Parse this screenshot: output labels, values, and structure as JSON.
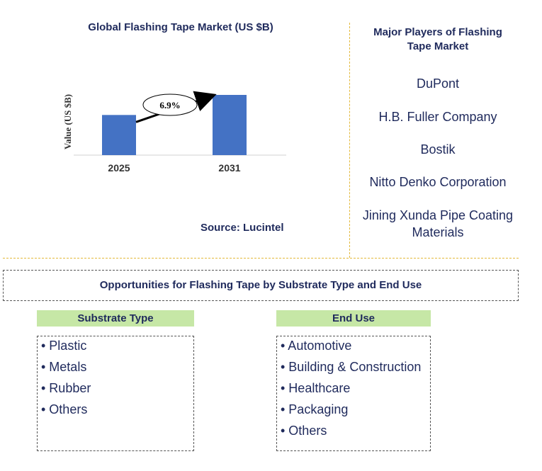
{
  "chart_data": {
    "type": "bar",
    "title": "Global Flashing Tape Market (US $B)",
    "ylabel": "Value (US $B)",
    "xlabel": "",
    "categories": [
      "2025",
      "2031"
    ],
    "values": [
      1.0,
      1.5
    ],
    "ylim": [
      0,
      1.5
    ],
    "cagr_label": "6.9%",
    "bar_color": "#4472c4",
    "source": "Source: Lucintel"
  },
  "players": {
    "title_lines": [
      "Major Players of Flashing",
      "Tape Market"
    ],
    "items": [
      [
        "DuPont"
      ],
      [
        "H.B. Fuller Company"
      ],
      [
        "Bostik"
      ],
      [
        "Nitto Denko Corporation"
      ],
      [
        "Jining Xunda Pipe Coating",
        "Materials"
      ]
    ]
  },
  "opportunities": {
    "title": "Opportunities for Flashing Tape by Substrate Type and End Use",
    "segments": [
      {
        "header": "Substrate Type",
        "items": [
          "• Plastic",
          "• Metals",
          "• Rubber",
          "• Others"
        ]
      },
      {
        "header": "End Use",
        "items": [
          "• Automotive",
          "• Building & Construction",
          "• Healthcare",
          "• Packaging",
          "• Others"
        ]
      }
    ]
  }
}
